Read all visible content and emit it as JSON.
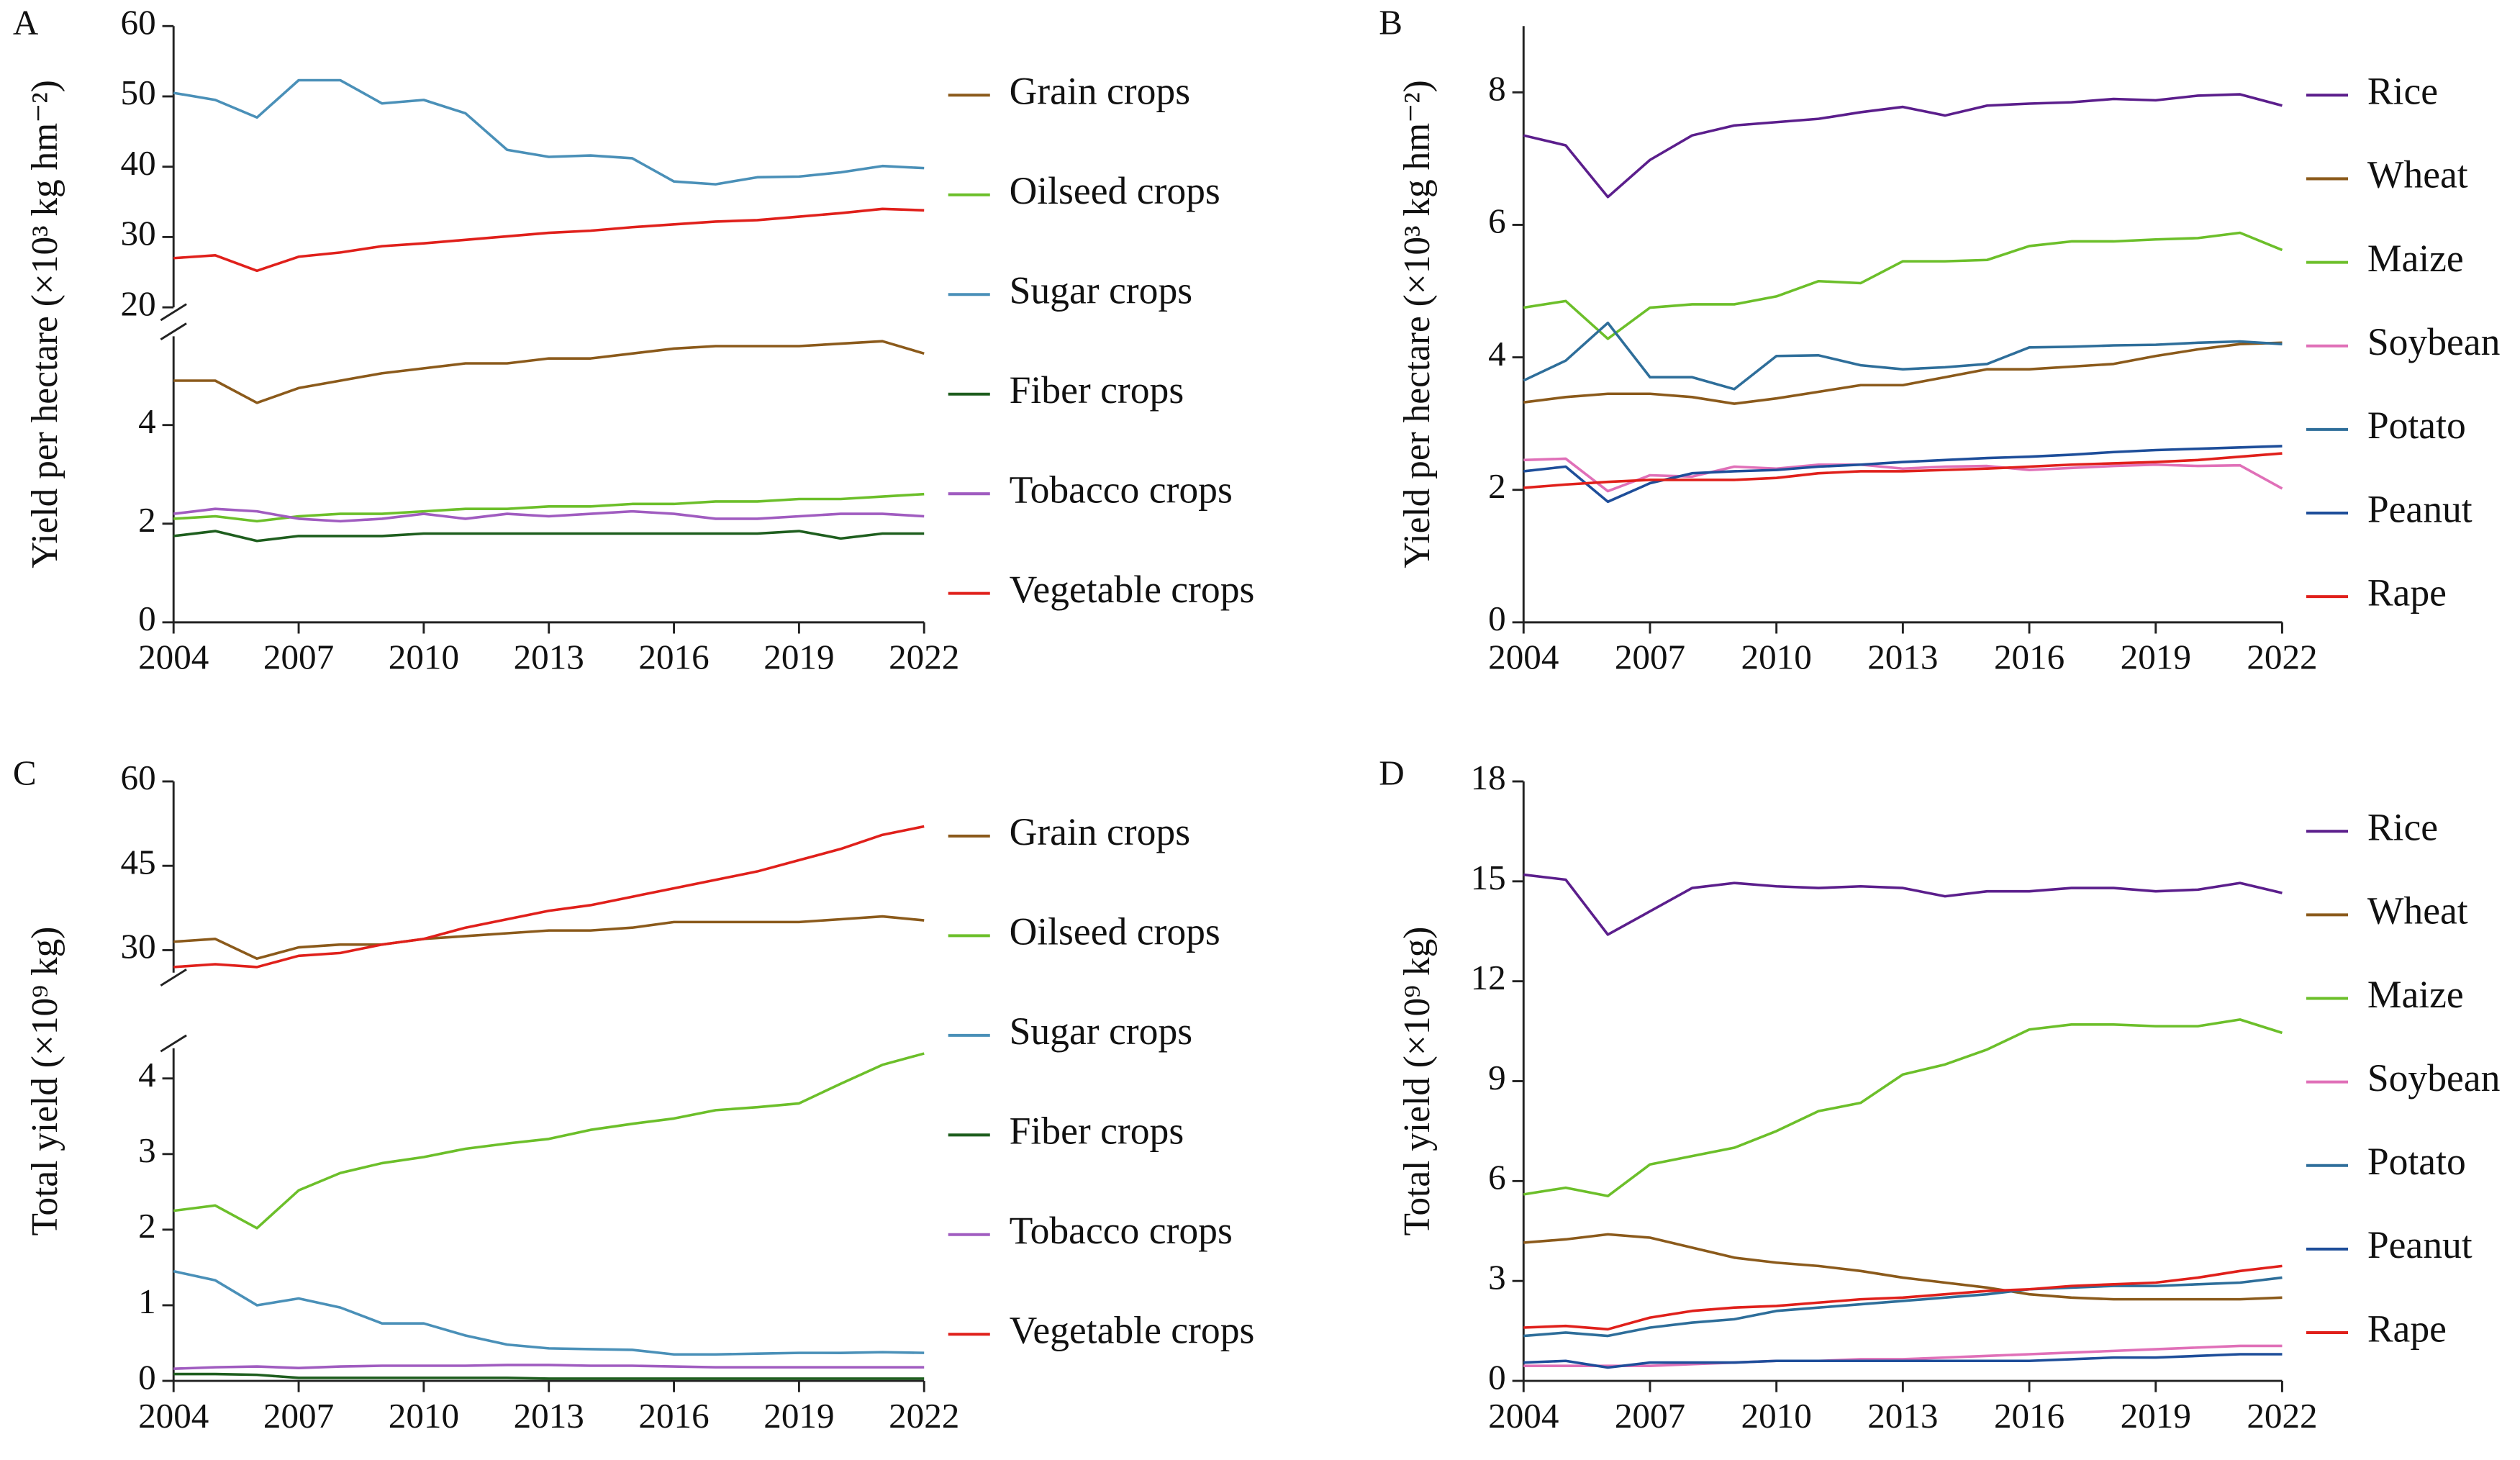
{
  "chart_data": [
    {
      "type": "line",
      "panel_label": "A",
      "y_label": "Yield per hectare (×10³ kg hm⁻²)",
      "x": [
        2004,
        2005,
        2006,
        2007,
        2008,
        2009,
        2010,
        2011,
        2012,
        2013,
        2014,
        2015,
        2016,
        2017,
        2018,
        2019,
        2020,
        2021,
        2022
      ],
      "xlim": [
        2004,
        2022
      ],
      "xticks": [
        2004,
        2007,
        2010,
        2013,
        2016,
        2019,
        2022
      ],
      "y_segments": [
        {
          "ylim": [
            0,
            5.8
          ],
          "yticks": [
            0,
            2,
            4
          ]
        },
        {
          "ylim": [
            20,
            60
          ],
          "yticks": [
            20,
            30,
            40,
            50,
            60
          ]
        }
      ],
      "series": [
        {
          "name": "Grain crops",
          "color": "#8b5a1b",
          "values": [
            4.9,
            4.9,
            4.45,
            4.75,
            4.9,
            5.05,
            5.15,
            5.25,
            5.25,
            5.35,
            5.35,
            5.45,
            5.55,
            5.6,
            5.6,
            5.6,
            5.65,
            5.7,
            5.45
          ]
        },
        {
          "name": "Oilseed crops",
          "color": "#6cbf2a",
          "values": [
            2.1,
            2.15,
            2.05,
            2.15,
            2.2,
            2.2,
            2.25,
            2.3,
            2.3,
            2.35,
            2.35,
            2.4,
            2.4,
            2.45,
            2.45,
            2.5,
            2.5,
            2.55,
            2.6
          ]
        },
        {
          "name": "Sugar crops",
          "color": "#4a90b8",
          "values": [
            50.5,
            49.5,
            47,
            52.3,
            52.3,
            49,
            49.5,
            47.6,
            42.4,
            41.4,
            41.6,
            41.2,
            37.9,
            37.5,
            38.5,
            38.6,
            39.2,
            40.1,
            39.8
          ]
        },
        {
          "name": "Fiber crops",
          "color": "#1e5e1e",
          "values": [
            1.75,
            1.85,
            1.65,
            1.75,
            1.75,
            1.75,
            1.8,
            1.8,
            1.8,
            1.8,
            1.8,
            1.8,
            1.8,
            1.8,
            1.8,
            1.85,
            1.7,
            1.8,
            1.8
          ]
        },
        {
          "name": "Tobacco crops",
          "color": "#a05cc0",
          "values": [
            2.2,
            2.3,
            2.25,
            2.1,
            2.05,
            2.1,
            2.2,
            2.1,
            2.2,
            2.15,
            2.2,
            2.25,
            2.2,
            2.1,
            2.1,
            2.15,
            2.2,
            2.2,
            2.15
          ]
        },
        {
          "name": "Vegetable crops",
          "color": "#e0201b",
          "values": [
            27,
            27.4,
            25.2,
            27.2,
            27.8,
            28.7,
            29.1,
            29.6,
            30.1,
            30.6,
            30.9,
            31.4,
            31.8,
            32.2,
            32.4,
            32.9,
            33.4,
            34,
            33.8
          ]
        }
      ]
    },
    {
      "type": "line",
      "panel_label": "B",
      "y_label": "Yield per hectare (×10³ kg hm⁻²)",
      "x": [
        2004,
        2005,
        2006,
        2007,
        2008,
        2009,
        2010,
        2011,
        2012,
        2013,
        2014,
        2015,
        2016,
        2017,
        2018,
        2019,
        2020,
        2021,
        2022
      ],
      "xlim": [
        2004,
        2022
      ],
      "xticks": [
        2004,
        2007,
        2010,
        2013,
        2016,
        2019,
        2022
      ],
      "ylim": [
        0,
        9
      ],
      "yticks": [
        0,
        2,
        4,
        6,
        8
      ],
      "series": [
        {
          "name": "Rice",
          "color": "#5b1e8c",
          "values": [
            7.35,
            7.2,
            6.42,
            6.98,
            7.35,
            7.5,
            7.55,
            7.6,
            7.7,
            7.78,
            7.65,
            7.8,
            7.83,
            7.85,
            7.9,
            7.88,
            7.95,
            7.97,
            7.8
          ]
        },
        {
          "name": "Wheat",
          "color": "#8b5a1b",
          "values": [
            3.32,
            3.4,
            3.45,
            3.45,
            3.4,
            3.3,
            3.38,
            3.48,
            3.58,
            3.58,
            3.7,
            3.82,
            3.82,
            3.86,
            3.9,
            4.02,
            4.12,
            4.2,
            4.22
          ]
        },
        {
          "name": "Maize",
          "color": "#6cbf2a",
          "values": [
            4.75,
            4.85,
            4.28,
            4.75,
            4.8,
            4.8,
            4.92,
            5.15,
            5.12,
            5.45,
            5.45,
            5.47,
            5.68,
            5.75,
            5.75,
            5.78,
            5.8,
            5.88,
            5.62
          ]
        },
        {
          "name": "Soybean",
          "color": "#e070b8",
          "values": [
            2.45,
            2.47,
            1.98,
            2.22,
            2.2,
            2.35,
            2.32,
            2.38,
            2.38,
            2.32,
            2.35,
            2.36,
            2.3,
            2.33,
            2.36,
            2.38,
            2.36,
            2.37,
            2.02
          ]
        },
        {
          "name": "Potato",
          "color": "#2e6e9a",
          "values": [
            3.65,
            3.95,
            4.52,
            3.7,
            3.7,
            3.52,
            4.02,
            4.03,
            3.88,
            3.82,
            3.85,
            3.9,
            4.15,
            4.16,
            4.18,
            4.19,
            4.22,
            4.24,
            4.2
          ]
        },
        {
          "name": "Peanut",
          "color": "#1e4e9a",
          "values": [
            2.28,
            2.35,
            1.82,
            2.1,
            2.25,
            2.28,
            2.3,
            2.35,
            2.38,
            2.42,
            2.45,
            2.48,
            2.5,
            2.53,
            2.57,
            2.6,
            2.62,
            2.64,
            2.66
          ]
        },
        {
          "name": "Rape",
          "color": "#e0201b",
          "values": [
            2.03,
            2.08,
            2.12,
            2.15,
            2.15,
            2.15,
            2.18,
            2.25,
            2.28,
            2.28,
            2.3,
            2.32,
            2.35,
            2.38,
            2.4,
            2.42,
            2.45,
            2.5,
            2.55
          ]
        }
      ]
    },
    {
      "type": "line",
      "panel_label": "C",
      "y_label": "Total yield (×10⁹ kg)",
      "x": [
        2004,
        2005,
        2006,
        2007,
        2008,
        2009,
        2010,
        2011,
        2012,
        2013,
        2014,
        2015,
        2016,
        2017,
        2018,
        2019,
        2020,
        2021,
        2022
      ],
      "xlim": [
        2004,
        2022
      ],
      "xticks": [
        2004,
        2007,
        2010,
        2013,
        2016,
        2019,
        2022
      ],
      "y_segments": [
        {
          "ylim": [
            0,
            4.4
          ],
          "yticks": [
            0,
            1,
            2,
            3,
            4
          ]
        },
        {
          "ylim": [
            26,
            60
          ],
          "yticks": [
            30,
            45,
            60
          ]
        }
      ],
      "series": [
        {
          "name": "Grain crops",
          "color": "#8b5a1b",
          "values": [
            31.5,
            32,
            28.5,
            30.5,
            31,
            31,
            32,
            32.5,
            33,
            33.5,
            33.5,
            34,
            35,
            35,
            35,
            35,
            35.5,
            36,
            35.3
          ]
        },
        {
          "name": "Oilseed crops",
          "color": "#6cbf2a",
          "values": [
            2.25,
            2.32,
            2.02,
            2.52,
            2.75,
            2.88,
            2.96,
            3.07,
            3.14,
            3.2,
            3.32,
            3.4,
            3.47,
            3.58,
            3.62,
            3.67,
            3.93,
            4.18,
            4.33
          ]
        },
        {
          "name": "Sugar crops",
          "color": "#4a90b8",
          "values": [
            1.45,
            1.33,
            1.0,
            1.09,
            0.97,
            0.76,
            0.76,
            0.6,
            0.48,
            0.43,
            0.42,
            0.41,
            0.35,
            0.35,
            0.36,
            0.37,
            0.37,
            0.38,
            0.37
          ]
        },
        {
          "name": "Fiber crops",
          "color": "#1e5e1e",
          "values": [
            0.09,
            0.09,
            0.08,
            0.04,
            0.04,
            0.04,
            0.04,
            0.04,
            0.04,
            0.03,
            0.03,
            0.03,
            0.03,
            0.03,
            0.03,
            0.03,
            0.03,
            0.03,
            0.03
          ]
        },
        {
          "name": "Tobacco crops",
          "color": "#a05cc0",
          "values": [
            0.16,
            0.18,
            0.19,
            0.17,
            0.19,
            0.2,
            0.2,
            0.2,
            0.21,
            0.21,
            0.2,
            0.2,
            0.19,
            0.18,
            0.18,
            0.18,
            0.18,
            0.18,
            0.18
          ]
        },
        {
          "name": "Vegetable crops",
          "color": "#e0201b",
          "values": [
            27,
            27.5,
            27,
            29,
            29.5,
            31,
            32,
            34,
            35.5,
            37,
            38,
            39.5,
            41,
            42.5,
            44,
            46,
            48,
            50.5,
            52
          ]
        }
      ]
    },
    {
      "type": "line",
      "panel_label": "D",
      "y_label": "Total yield (×10⁹ kg)",
      "x": [
        2004,
        2005,
        2006,
        2007,
        2008,
        2009,
        2010,
        2011,
        2012,
        2013,
        2014,
        2015,
        2016,
        2017,
        2018,
        2019,
        2020,
        2021,
        2022
      ],
      "xlim": [
        2004,
        2022
      ],
      "xticks": [
        2004,
        2007,
        2010,
        2013,
        2016,
        2019,
        2022
      ],
      "ylim": [
        0,
        18
      ],
      "yticks": [
        0,
        3,
        6,
        9,
        12,
        15,
        18
      ],
      "series": [
        {
          "name": "Rice",
          "color": "#5b1e8c",
          "values": [
            15.2,
            15.05,
            13.4,
            14.1,
            14.8,
            14.95,
            14.85,
            14.8,
            14.85,
            14.8,
            14.55,
            14.7,
            14.7,
            14.8,
            14.8,
            14.7,
            14.75,
            14.95,
            14.65
          ]
        },
        {
          "name": "Wheat",
          "color": "#8b5a1b",
          "values": [
            4.15,
            4.25,
            4.4,
            4.3,
            4,
            3.7,
            3.55,
            3.45,
            3.3,
            3.1,
            2.95,
            2.8,
            2.6,
            2.5,
            2.45,
            2.45,
            2.45,
            2.45,
            2.5
          ]
        },
        {
          "name": "Maize",
          "color": "#6cbf2a",
          "values": [
            5.6,
            5.8,
            5.55,
            6.5,
            6.75,
            7.0,
            7.5,
            8.1,
            8.35,
            9.2,
            9.5,
            9.95,
            10.55,
            10.7,
            10.7,
            10.65,
            10.65,
            10.85,
            10.45
          ]
        },
        {
          "name": "Soybean",
          "color": "#e070b8",
          "values": [
            0.45,
            0.45,
            0.45,
            0.45,
            0.5,
            0.55,
            0.6,
            0.6,
            0.65,
            0.65,
            0.7,
            0.75,
            0.8,
            0.85,
            0.9,
            0.95,
            1.0,
            1.05,
            1.05
          ]
        },
        {
          "name": "Potato",
          "color": "#2e6e9a",
          "values": [
            1.35,
            1.45,
            1.35,
            1.6,
            1.75,
            1.85,
            2.1,
            2.2,
            2.3,
            2.4,
            2.5,
            2.6,
            2.75,
            2.8,
            2.85,
            2.85,
            2.9,
            2.95,
            3.1
          ]
        },
        {
          "name": "Peanut",
          "color": "#1e4e9a",
          "values": [
            0.55,
            0.6,
            0.4,
            0.55,
            0.55,
            0.55,
            0.6,
            0.6,
            0.6,
            0.6,
            0.6,
            0.6,
            0.6,
            0.65,
            0.7,
            0.7,
            0.75,
            0.8,
            0.8
          ]
        },
        {
          "name": "Rape",
          "color": "#e0201b",
          "values": [
            1.6,
            1.65,
            1.55,
            1.9,
            2.1,
            2.2,
            2.25,
            2.35,
            2.45,
            2.5,
            2.6,
            2.7,
            2.75,
            2.85,
            2.9,
            2.95,
            3.1,
            3.3,
            3.45
          ]
        }
      ]
    }
  ]
}
